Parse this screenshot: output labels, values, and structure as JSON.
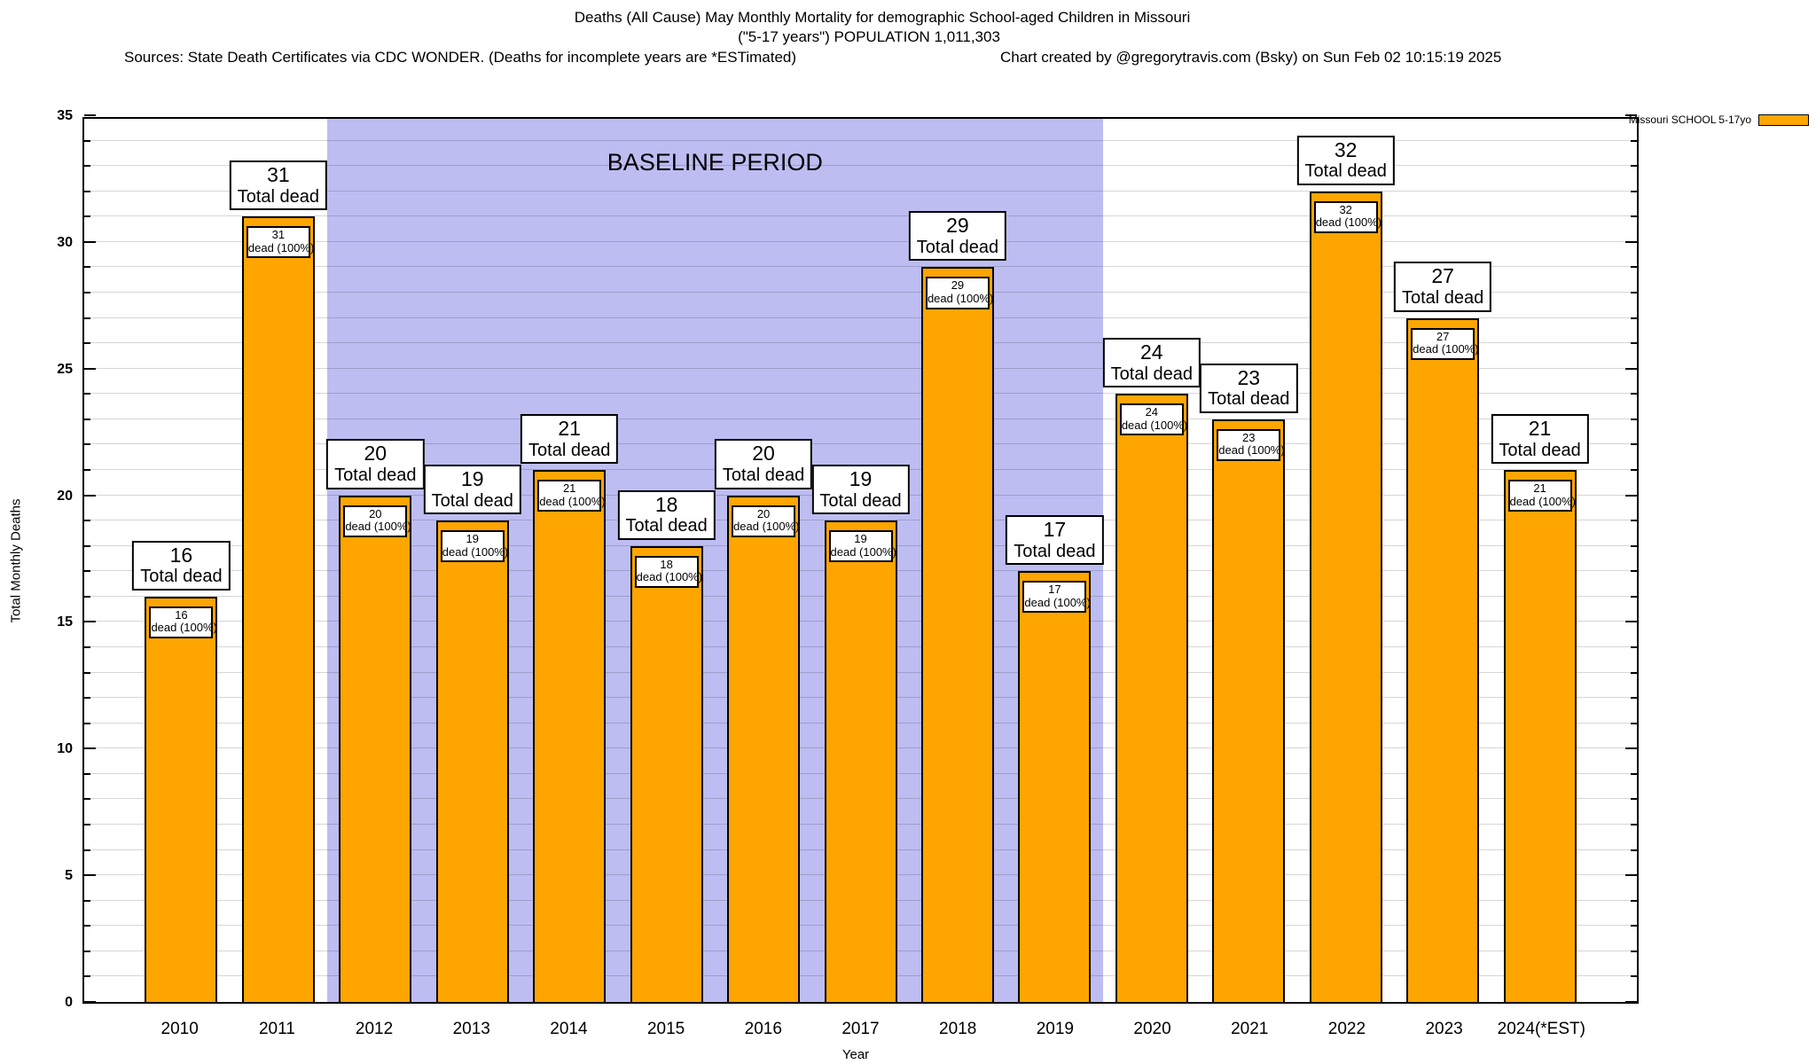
{
  "title": {
    "line1": "Deaths (All Cause) May Monthly Mortality for demographic School-aged Children in Missouri",
    "line2": "(\"5-17 years\") POPULATION 1,011,303",
    "sources": "Sources: State Death Certificates via CDC WONDER. (Deaths for incomplete years are *ESTimated)",
    "credit": "Chart created by @gregorytravis.com (Bsky) on Sun Feb 02 10:15:19 2025"
  },
  "legend": {
    "label": "Missouri SCHOOL 5-17yo",
    "swatch_color": "#FFA500",
    "position": "top-right-outside"
  },
  "axes": {
    "y": {
      "label": "Total Monthly Deaths",
      "min": 0,
      "max": 35,
      "major_tick_step": 5,
      "minor_tick_step": 1
    },
    "x": {
      "label": "Year"
    }
  },
  "annotations": {
    "above_bar_label": "Total dead",
    "inside_bar_label": "dead (100%)",
    "baseline_label": "BASELINE PERIOD"
  },
  "colors": {
    "bar_fill": "#FFA500",
    "bar_border": "#000000",
    "baseline_region": "#bdbdf2",
    "gridline": "rgba(0,0,0,0.16)"
  },
  "chart_data": {
    "type": "bar",
    "title": "Deaths (All Cause) May Monthly Mortality for demographic School-aged Children in Missouri (\"5-17 years\") POPULATION 1,011,303",
    "categories": [
      "2010",
      "2011",
      "2012",
      "2013",
      "2014",
      "2015",
      "2016",
      "2017",
      "2018",
      "2019",
      "2020",
      "2021",
      "2022",
      "2023",
      "2024(*EST)"
    ],
    "series": [
      {
        "name": "Missouri SCHOOL 5-17yo",
        "values": [
          16,
          31,
          20,
          19,
          21,
          18,
          20,
          19,
          29,
          17,
          24,
          23,
          32,
          27,
          21
        ]
      }
    ],
    "xlabel": "Year",
    "ylabel": "Total Monthly Deaths",
    "ylim": [
      0,
      35
    ],
    "grid": true,
    "legend_position": "top-right-outside",
    "baseline_period": {
      "label": "BASELINE PERIOD",
      "from": "2012",
      "to": "2019"
    }
  }
}
